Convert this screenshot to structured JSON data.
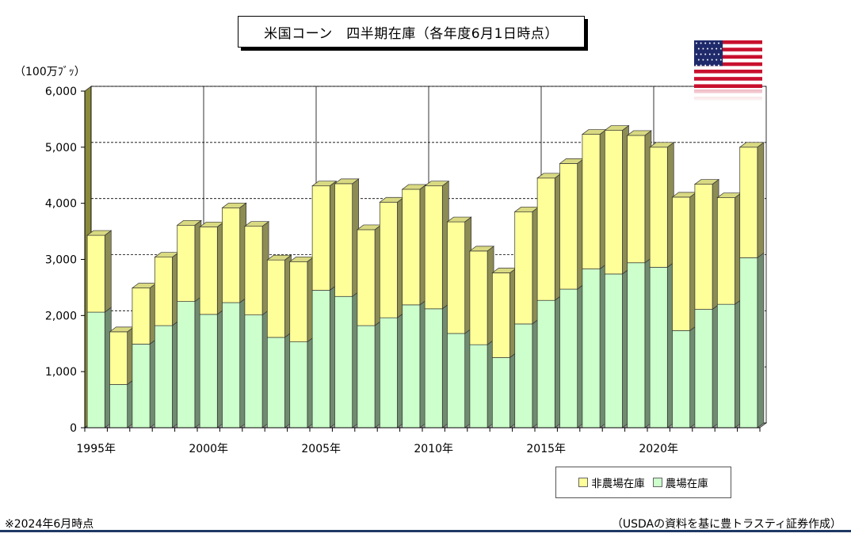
{
  "title": "米国コーン　四半期在庫（各年度6月1日時点）",
  "unit_label": "（100万ﾌﾞｯ）",
  "note": "※2024年6月時点",
  "source": "（USDAの資料を基に豊トラスティ証券作成）",
  "colors": {
    "non_farm": "#ffff99",
    "farm": "#ccffcc",
    "accent_rule": "#1f3864"
  },
  "flag_icon": "us-flag-icon",
  "chart_data": {
    "type": "bar",
    "stacked": true,
    "categories": [
      "1995",
      "1996",
      "1997",
      "1998",
      "1999",
      "2000",
      "2001",
      "2002",
      "2003",
      "2004",
      "2005",
      "2006",
      "2007",
      "2008",
      "2009",
      "2010",
      "2011",
      "2012",
      "2013",
      "2014",
      "2015",
      "2016",
      "2017",
      "2018",
      "2019",
      "2020",
      "2021",
      "2022",
      "2023",
      "2024"
    ],
    "x_tick_labels": [
      "1995年",
      "2000年",
      "2005年",
      "2010年",
      "2015年",
      "2020年"
    ],
    "y_tick_labels": [
      "0",
      "1,000",
      "2,000",
      "3,000",
      "4,000",
      "5,000",
      "6,000"
    ],
    "ylim": [
      0,
      6000
    ],
    "series": [
      {
        "name": "農場在庫",
        "color": "#ccffcc",
        "values": [
          2060,
          770,
          1490,
          1820,
          2250,
          2020,
          2230,
          2010,
          1610,
          1530,
          2450,
          2340,
          1820,
          1960,
          2190,
          2120,
          1680,
          1480,
          1250,
          1850,
          2270,
          2470,
          2830,
          2740,
          2940,
          2860,
          1730,
          2110,
          2200,
          3030
        ]
      },
      {
        "name": "非農場在庫",
        "color": "#ffff99",
        "values": [
          1370,
          940,
          1000,
          1220,
          1360,
          1560,
          1690,
          1580,
          1380,
          1430,
          1860,
          2010,
          1710,
          2060,
          2060,
          2190,
          1990,
          1670,
          1510,
          2000,
          2180,
          2240,
          2400,
          2560,
          2270,
          2140,
          2380,
          2230,
          1900,
          1970
        ]
      }
    ],
    "grid": "horizontal-dashed + vertical at 5-year marks",
    "legend": "bottom-right"
  }
}
